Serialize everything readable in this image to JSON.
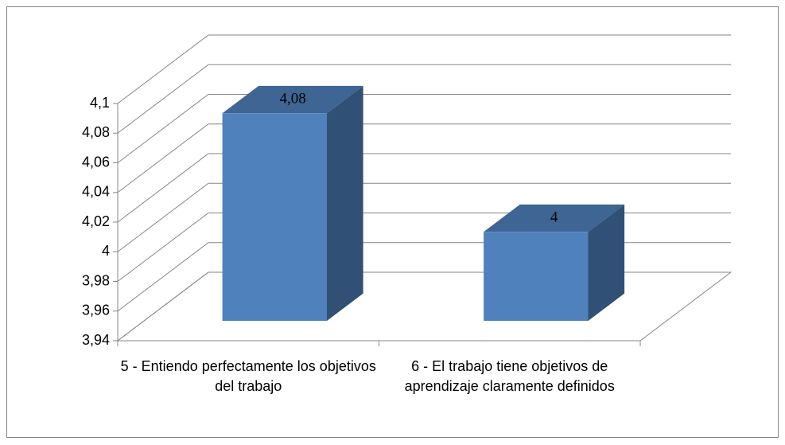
{
  "chart_data": {
    "type": "bar3d",
    "categories": [
      "5 - Entiendo perfectamente los objetivos del trabajo",
      "6 - El trabajo tiene objetivos de aprendizaje claramente definidos"
    ],
    "values": [
      4.08,
      4
    ],
    "value_labels": [
      "4,08",
      "4"
    ],
    "color": "#4f81bd",
    "ylim": [
      3.94,
      4.1
    ],
    "yticks": [
      {
        "value": 3.94,
        "label": "3,94"
      },
      {
        "value": 3.96,
        "label": "3,96"
      },
      {
        "value": 3.98,
        "label": "3,98"
      },
      4,
      {
        "value": 4.02,
        "label": "4,02"
      },
      {
        "value": 4.04,
        "label": "4,04"
      },
      {
        "value": 4.06,
        "label": "4,06"
      },
      {
        "value": 4.08,
        "label": "4,08"
      },
      {
        "value": 4.1,
        "label": "4,1"
      }
    ],
    "grid": true
  }
}
